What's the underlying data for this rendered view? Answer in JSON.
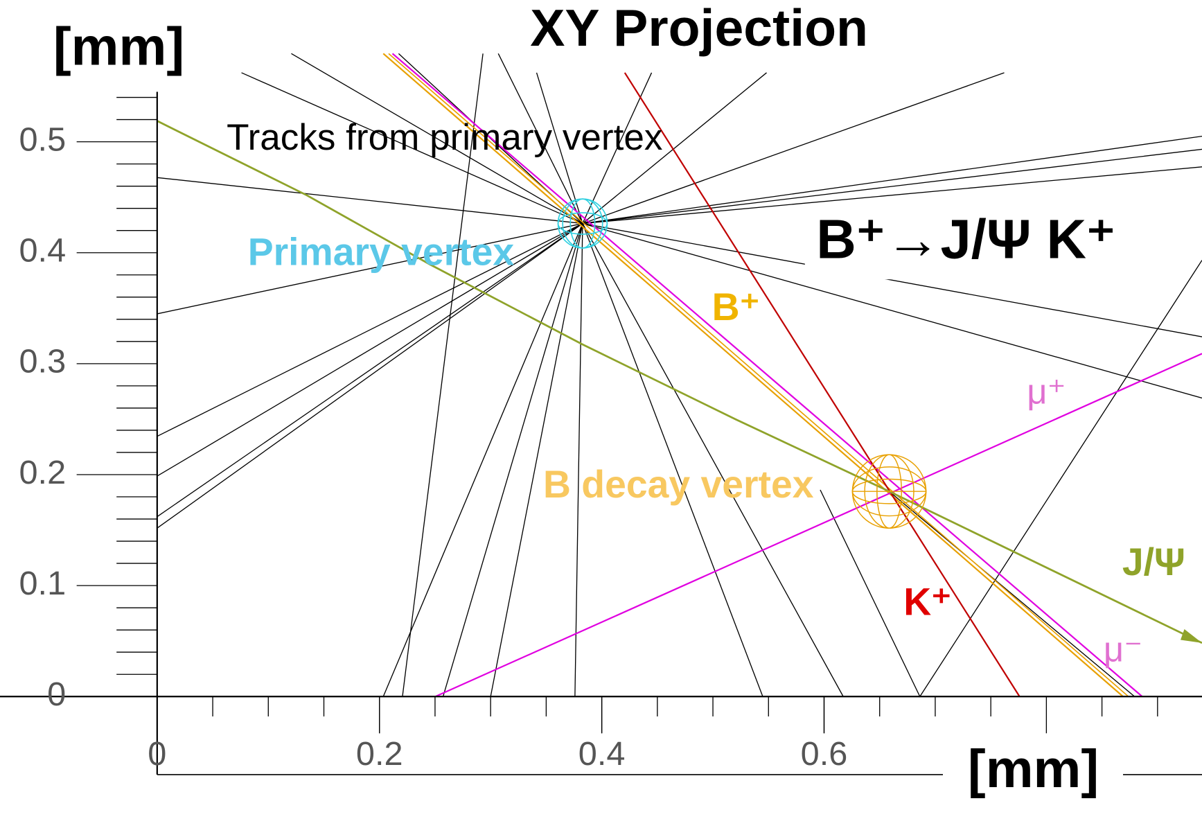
{
  "chart_data": {
    "type": "event_display",
    "title": "XY Projection",
    "y_label": "[mm]",
    "x_label": "[mm]",
    "xlim": [
      0,
      0.94
    ],
    "ylim": [
      0,
      0.545
    ],
    "xticks": [
      0,
      0.2,
      0.4,
      0.6
    ],
    "yticks": [
      0,
      0.1,
      0.2,
      0.3,
      0.4,
      0.5
    ],
    "annotations": {
      "tracks": "Tracks from primary vertex",
      "primary_vertex": "Primary vertex",
      "decay": "B⁺→J/Ψ K⁺",
      "b_plus": "B⁺",
      "mu_plus": "μ⁺",
      "b_decay_vertex": "B decay vertex",
      "jpsi": "J/Ψ",
      "k_plus": "K⁺",
      "mu_minus": "μ⁻"
    }
  }
}
